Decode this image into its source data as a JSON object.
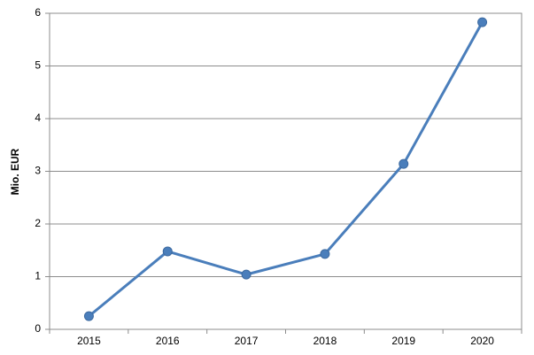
{
  "chart_data": {
    "type": "line",
    "y_label": "Mio. EUR",
    "categories": [
      "2015",
      "2016",
      "2017",
      "2018",
      "2019",
      "2020"
    ],
    "values": [
      0.25,
      1.48,
      1.04,
      1.43,
      3.14,
      5.83
    ],
    "color": "#4a7ebb",
    "ylim": [
      0,
      6
    ],
    "yticks": [
      0,
      1,
      2,
      3,
      4,
      5,
      6
    ],
    "grid": true
  }
}
